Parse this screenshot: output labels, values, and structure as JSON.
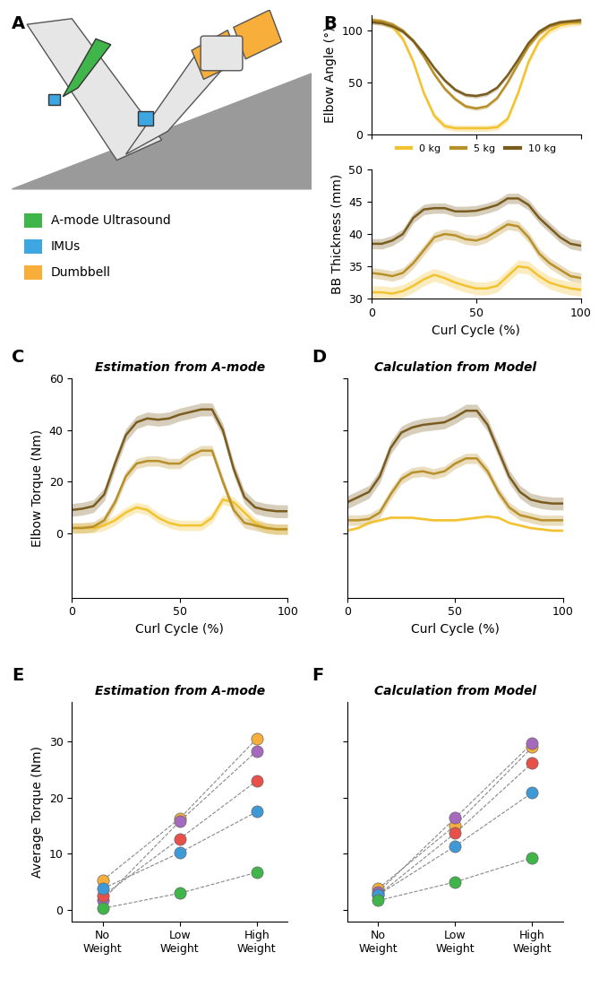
{
  "chart_data": [
    {
      "panel": "A",
      "type": "illustration",
      "legend_items": [
        {
          "name": "A-mode Ultrasound",
          "color": "#3fb54a"
        },
        {
          "name": "IMUs",
          "color": "#3ea6e0"
        },
        {
          "name": "Dumbbell",
          "color": "#f7ae3b"
        }
      ]
    },
    {
      "panel": "B",
      "type": "line",
      "y_label": "Elbow Angle (°)",
      "x": [
        0,
        5,
        10,
        15,
        20,
        25,
        30,
        35,
        40,
        45,
        50,
        55,
        60,
        65,
        70,
        75,
        80,
        85,
        90,
        95,
        100
      ],
      "xlim": [
        0,
        100
      ],
      "xticks": [
        0,
        50,
        100
      ],
      "ylim": [
        0,
        115
      ],
      "yticks": [
        0,
        50,
        100
      ],
      "tick_labels": "y",
      "legend": "upper center",
      "series": [
        {
          "name": "0 kg",
          "color": "#f2c230",
          "error": 3,
          "values": [
            110,
            108,
            104,
            92,
            70,
            40,
            18,
            8,
            6,
            6,
            6,
            6,
            7,
            15,
            40,
            70,
            90,
            100,
            105,
            107,
            108
          ]
        },
        {
          "name": "5 kg",
          "color": "#b8902a",
          "error": 2,
          "values": [
            110,
            109,
            106,
            100,
            90,
            75,
            58,
            44,
            34,
            27,
            25,
            27,
            35,
            50,
            68,
            85,
            97,
            104,
            107,
            108,
            108
          ]
        },
        {
          "name": "10 kg",
          "color": "#7a5c1e",
          "error": 2,
          "values": [
            108,
            107,
            104,
            99,
            90,
            78,
            64,
            52,
            43,
            38,
            37,
            39,
            45,
            57,
            72,
            88,
            99,
            105,
            108,
            109,
            110
          ]
        }
      ]
    },
    {
      "panel": "",
      "type": "line",
      "y_label": "BB Thickness (mm)",
      "x_label": "Curl Cycle (%)",
      "x": [
        0,
        5,
        10,
        15,
        20,
        25,
        30,
        35,
        40,
        45,
        50,
        55,
        60,
        65,
        70,
        75,
        80,
        85,
        90,
        95,
        100
      ],
      "xlim": [
        0,
        100
      ],
      "xticks": [
        0,
        50,
        100
      ],
      "ylim": [
        30,
        50
      ],
      "yticks": [
        30,
        35,
        40,
        45,
        50
      ],
      "series": [
        {
          "color": "#f2c230",
          "error": 1,
          "values": [
            31,
            31,
            30.8,
            31.2,
            32,
            33,
            33.7,
            33.2,
            32.5,
            32,
            31.6,
            31.6,
            32,
            33.5,
            35,
            34.8,
            33.5,
            32.5,
            32,
            31.6,
            31.4
          ]
        },
        {
          "color": "#b8902a",
          "error": 0.8,
          "values": [
            34,
            33.8,
            33.5,
            34,
            35.5,
            37.5,
            39.5,
            40,
            39.8,
            39.2,
            39,
            39.5,
            40.5,
            41.5,
            41.2,
            39.5,
            37,
            35.5,
            34.5,
            33.5,
            33.2
          ]
        },
        {
          "color": "#7a5c1e",
          "error": 0.8,
          "values": [
            38.5,
            38.5,
            39,
            40,
            42.5,
            43.8,
            44,
            44,
            43.5,
            43.5,
            43.6,
            44,
            44.5,
            45.5,
            45.5,
            44.5,
            42.5,
            41,
            39.5,
            38.5,
            38.2
          ]
        }
      ]
    },
    {
      "panel": "C",
      "type": "line",
      "title": "Estimation from A-mode",
      "y_label": "Elbow Torque (Nm)",
      "x_label": "Curl Cycle (%)",
      "x": [
        0,
        5,
        10,
        15,
        20,
        25,
        30,
        35,
        40,
        45,
        50,
        55,
        60,
        65,
        70,
        75,
        80,
        85,
        90,
        95,
        100
      ],
      "xlim": [
        0,
        100
      ],
      "xticks": [
        0,
        50,
        100
      ],
      "ylim": [
        -25,
        60
      ],
      "yticks": [
        0,
        20,
        40,
        60
      ],
      "series": [
        {
          "color": "#f2c230",
          "error": 2,
          "values": [
            2,
            2,
            2,
            3,
            5,
            8,
            10,
            9,
            6,
            4,
            3,
            3,
            3,
            6,
            13,
            12,
            8,
            4,
            2,
            1.5,
            1.5
          ]
        },
        {
          "color": "#b8902a",
          "error": 2,
          "values": [
            2,
            2,
            2.5,
            5,
            12,
            22,
            27,
            28,
            28,
            27,
            27,
            30,
            32,
            32,
            20,
            9,
            4,
            3,
            2,
            1.5,
            1.5
          ]
        },
        {
          "color": "#7a5c1e",
          "error": 2.5,
          "values": [
            9,
            9.5,
            10.5,
            15,
            27,
            38,
            43,
            44.5,
            44,
            44.5,
            46,
            47,
            48,
            48,
            40,
            25,
            14,
            10,
            9,
            8.5,
            8.5
          ]
        }
      ]
    },
    {
      "panel": "D",
      "type": "line",
      "title": "Calculation from Model",
      "x_label": "Curl Cycle (%)",
      "x": [
        0,
        5,
        10,
        15,
        20,
        25,
        30,
        35,
        40,
        45,
        50,
        55,
        60,
        65,
        70,
        75,
        80,
        85,
        90,
        95,
        100
      ],
      "xlim": [
        0,
        100
      ],
      "xticks": [
        0,
        50,
        100
      ],
      "ylim": [
        -25,
        60
      ],
      "yticks": [
        0,
        20,
        40,
        60
      ],
      "tick_labels": "x",
      "series": [
        {
          "color": "#f2c230",
          "error": 0.5,
          "values": [
            1,
            2,
            4,
            5,
            6,
            6,
            6,
            5.5,
            5,
            5,
            5,
            5.5,
            6,
            6.5,
            6,
            4,
            3,
            2,
            1.5,
            1,
            1
          ]
        },
        {
          "color": "#b8902a",
          "error": 2,
          "values": [
            5,
            5,
            5.5,
            8,
            15,
            21,
            23.5,
            24,
            23,
            24,
            27,
            29,
            29,
            24,
            16,
            10,
            7,
            6,
            5,
            5,
            5
          ]
        },
        {
          "color": "#7a5c1e",
          "error": 2.5,
          "values": [
            12,
            14,
            16,
            22,
            33,
            39,
            41,
            42,
            42.5,
            43,
            45,
            47.5,
            47.5,
            42,
            32,
            22,
            16,
            13,
            12,
            11.5,
            11.5
          ]
        }
      ]
    },
    {
      "panel": "E",
      "type": "scatter",
      "title": "Estimation from A-mode",
      "y_label": "Average Torque (Nm)",
      "categories": [
        "No\nWeight",
        "Low\nWeight",
        "High\nWeight"
      ],
      "ylim": [
        -2,
        37
      ],
      "yticks": [
        0,
        10,
        20,
        30
      ],
      "marker": "o",
      "line_style": "dashed",
      "series": [
        {
          "color": "#f7ae3b",
          "values": [
            5.3,
            16.3,
            30.5
          ]
        },
        {
          "color": "#a569bd",
          "values": [
            1.8,
            15.8,
            28.3
          ]
        },
        {
          "color": "#e8504a",
          "values": [
            2.5,
            12.7,
            23.0
          ]
        },
        {
          "color": "#3e9ad6",
          "values": [
            3.8,
            10.2,
            17.5
          ]
        },
        {
          "color": "#3fb54a",
          "values": [
            0.3,
            3.0,
            6.7
          ]
        }
      ]
    },
    {
      "panel": "F",
      "type": "scatter",
      "title": "Calculation from Model",
      "categories": [
        "No\nWeight",
        "Low\nWeight",
        "High\nWeight"
      ],
      "ylim": [
        -2,
        37
      ],
      "yticks": [
        0,
        10,
        20,
        30
      ],
      "marker": "o",
      "line_style": "dashed",
      "tick_labels": "x",
      "series": [
        {
          "color": "#f7ae3b",
          "values": [
            3.8,
            15.1,
            29.0
          ]
        },
        {
          "color": "#a569bd",
          "values": [
            3.2,
            16.4,
            29.7
          ]
        },
        {
          "color": "#e8504a",
          "values": [
            2.7,
            13.7,
            26.2
          ]
        },
        {
          "color": "#3e9ad6",
          "values": [
            2.7,
            11.4,
            20.9
          ]
        },
        {
          "color": "#3fb54a",
          "values": [
            1.7,
            5.0,
            9.3
          ]
        }
      ]
    }
  ]
}
